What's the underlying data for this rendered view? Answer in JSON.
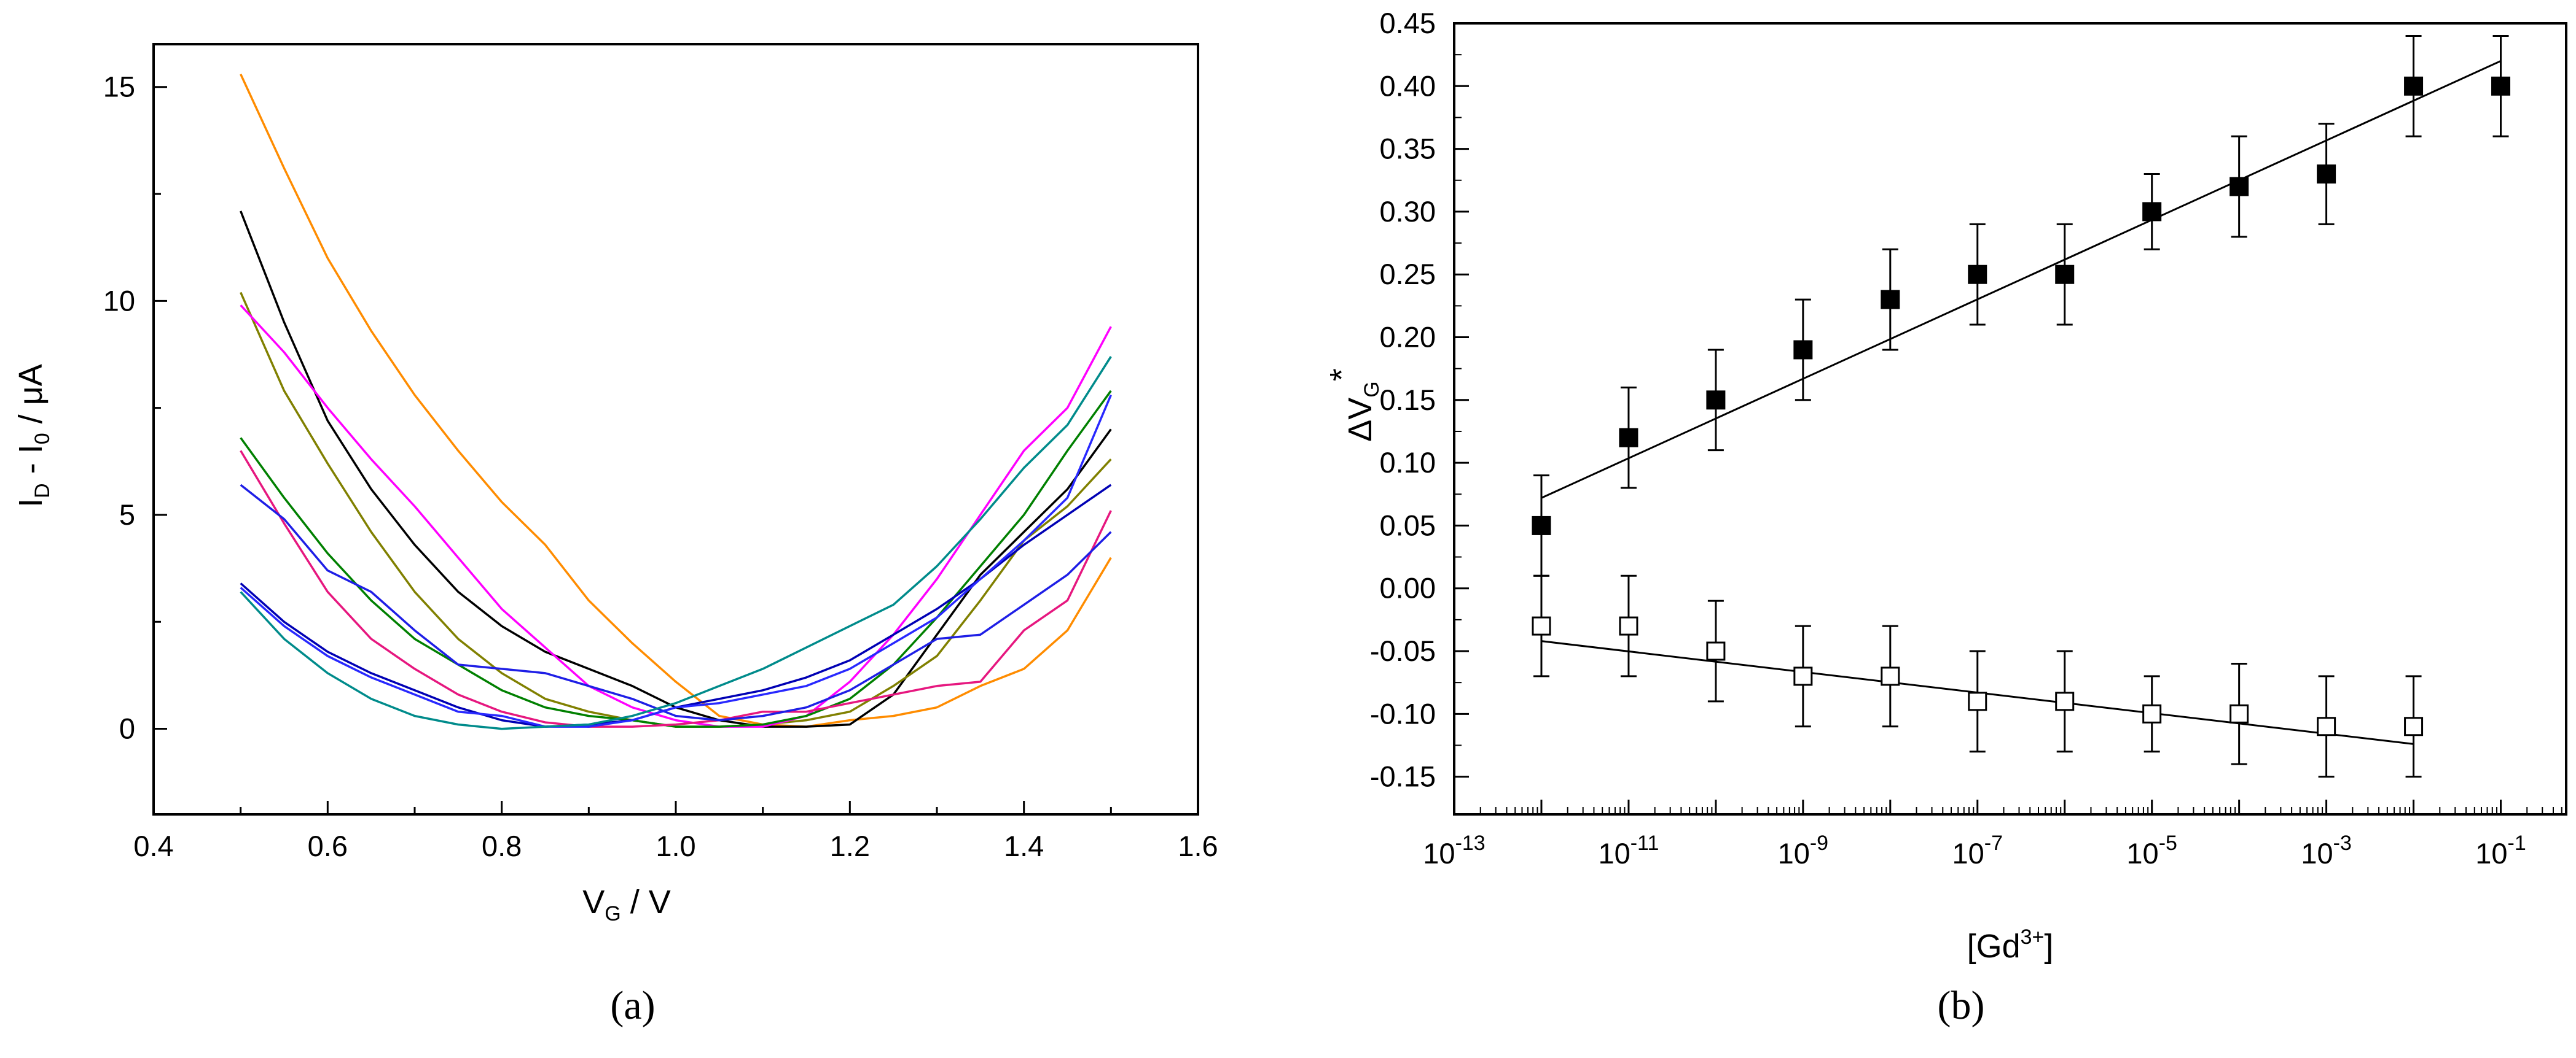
{
  "chart_data": [
    {
      "type": "line",
      "panel": "a",
      "caption": "(a)",
      "xlabel": "V",
      "xlabel_sub": "G",
      "xlabel_unit": "/ V",
      "ylabel": "I",
      "ylabel_sub1": "D",
      "ylabel_mid": "- I",
      "ylabel_sub2": "0",
      "ylabel_unit": "/ μA",
      "xlim": [
        0.4,
        1.6
      ],
      "ylim": [
        -2,
        16
      ],
      "xticks": [
        0.4,
        0.6,
        0.8,
        1.0,
        1.2,
        1.4,
        1.6
      ],
      "xtick_labels": [
        "0.4",
        "0.6",
        "0.8",
        "1.0",
        "1.2",
        "1.4",
        "1.6"
      ],
      "yticks": [
        0,
        5,
        10,
        15
      ],
      "ytick_labels": [
        "0",
        "5",
        "10",
        "15"
      ],
      "x": [
        0.5,
        0.55,
        0.6,
        0.65,
        0.7,
        0.75,
        0.8,
        0.85,
        0.9,
        0.95,
        1.0,
        1.05,
        1.1,
        1.15,
        1.2,
        1.25,
        1.3,
        1.35,
        1.4,
        1.45,
        1.5
      ],
      "series": [
        {
          "name": "orange",
          "color": "#FF8C00",
          "values": [
            15.3,
            13.1,
            11.0,
            9.3,
            7.8,
            6.5,
            5.3,
            4.3,
            3.0,
            2.0,
            1.1,
            0.3,
            0.1,
            0.05,
            0.2,
            0.3,
            0.5,
            1.0,
            1.4,
            2.3,
            4.0
          ]
        },
        {
          "name": "black",
          "color": "#000000",
          "values": [
            12.1,
            9.5,
            7.2,
            5.6,
            4.3,
            3.2,
            2.4,
            1.8,
            1.4,
            1.0,
            0.5,
            0.2,
            0.05,
            0.05,
            0.1,
            0.8,
            2.2,
            3.6,
            4.6,
            5.6,
            7.0
          ]
        },
        {
          "name": "olive",
          "color": "#808000",
          "values": [
            10.2,
            7.9,
            6.2,
            4.6,
            3.2,
            2.1,
            1.3,
            0.7,
            0.4,
            0.2,
            0.05,
            0.05,
            0.1,
            0.2,
            0.4,
            1.0,
            1.7,
            3.0,
            4.4,
            5.2,
            6.3
          ]
        },
        {
          "name": "magenta",
          "color": "#FF00FF",
          "values": [
            9.9,
            8.8,
            7.5,
            6.3,
            5.2,
            4.0,
            2.8,
            1.9,
            1.0,
            0.5,
            0.2,
            0.05,
            0.05,
            0.3,
            1.1,
            2.2,
            3.5,
            5.0,
            6.5,
            7.5,
            9.4
          ]
        },
        {
          "name": "green",
          "color": "#008000",
          "values": [
            6.8,
            5.4,
            4.1,
            3.0,
            2.1,
            1.5,
            0.9,
            0.5,
            0.3,
            0.2,
            0.05,
            0.05,
            0.1,
            0.3,
            0.7,
            1.5,
            2.6,
            3.8,
            5.0,
            6.5,
            7.9
          ]
        },
        {
          "name": "pink",
          "color": "#E6177F",
          "values": [
            6.5,
            4.8,
            3.2,
            2.1,
            1.4,
            0.8,
            0.4,
            0.15,
            0.05,
            0.05,
            0.1,
            0.2,
            0.4,
            0.4,
            0.6,
            0.8,
            1.0,
            1.1,
            2.3,
            3.0,
            5.1
          ]
        },
        {
          "name": "blue-upper",
          "color": "#1E1EE6",
          "values": [
            5.7,
            4.9,
            3.7,
            3.2,
            2.3,
            1.5,
            1.4,
            1.3,
            1.0,
            0.7,
            0.3,
            0.2,
            0.3,
            0.5,
            0.9,
            1.5,
            2.1,
            2.2,
            2.9,
            3.6,
            4.6
          ]
        },
        {
          "name": "navy",
          "color": "#0000B4",
          "values": [
            3.4,
            2.5,
            1.8,
            1.3,
            0.9,
            0.5,
            0.2,
            0.05,
            0.1,
            0.2,
            0.5,
            0.7,
            0.9,
            1.2,
            1.6,
            2.2,
            2.8,
            3.5,
            4.3,
            5.0,
            5.7
          ]
        },
        {
          "name": "blue-lower",
          "color": "#2828FF",
          "values": [
            3.3,
            2.4,
            1.7,
            1.2,
            0.8,
            0.4,
            0.3,
            0.05,
            0.05,
            0.2,
            0.5,
            0.6,
            0.8,
            1.0,
            1.4,
            2.0,
            2.6,
            3.5,
            4.4,
            5.4,
            7.8
          ]
        },
        {
          "name": "teal",
          "color": "#008B8B",
          "values": [
            3.2,
            2.1,
            1.3,
            0.7,
            0.3,
            0.1,
            0.0,
            0.05,
            0.1,
            0.3,
            0.6,
            1.0,
            1.4,
            1.9,
            2.4,
            2.9,
            3.8,
            4.9,
            6.1,
            7.1,
            8.7
          ]
        }
      ]
    },
    {
      "type": "scatter",
      "panel": "b",
      "caption": "(b)",
      "xscale": "log",
      "xlabel": "[Gd",
      "xlabel_sup": "3+",
      "xlabel_end": "]",
      "ylabel": "ΔV",
      "ylabel_sub": "G",
      "ylabel_sup": "*",
      "xlim_exp": [
        -13,
        -0.25
      ],
      "ylim": [
        -0.18,
        0.45
      ],
      "xtick_exponents": [
        -13,
        -11,
        -9,
        -7,
        -5,
        -3,
        -1
      ],
      "xtick_base": "10",
      "xtick_exp_labels": [
        "-13",
        "-11",
        "-9",
        "-7",
        "-5",
        "-3",
        "-1"
      ],
      "yticks": [
        -0.15,
        -0.1,
        -0.05,
        0.0,
        0.05,
        0.1,
        0.15,
        0.2,
        0.25,
        0.3,
        0.35,
        0.4,
        0.45
      ],
      "ytick_labels": [
        "-0.15",
        "-0.10",
        "-0.05",
        "0.00",
        "0.05",
        "0.10",
        "0.15",
        "0.20",
        "0.25",
        "0.30",
        "0.35",
        "0.40",
        "0.45"
      ],
      "series": [
        {
          "name": "filled",
          "marker": "filled-square",
          "x_exp": [
            -12,
            -11,
            -10,
            -9,
            -8,
            -7,
            -6,
            -5,
            -4,
            -3,
            -2,
            -1
          ],
          "values": [
            0.05,
            0.12,
            0.15,
            0.19,
            0.23,
            0.25,
            0.25,
            0.3,
            0.32,
            0.33,
            0.4,
            0.4
          ],
          "errors": [
            0.04,
            0.04,
            0.04,
            0.04,
            0.04,
            0.04,
            0.04,
            0.03,
            0.04,
            0.04,
            0.04,
            0.04
          ],
          "fit": {
            "x_exp": [
              -12,
              -1
            ],
            "y": [
              0.072,
              0.42
            ]
          }
        },
        {
          "name": "open",
          "marker": "open-square",
          "x_exp": [
            -12,
            -11,
            -10,
            -9,
            -8,
            -7,
            -6,
            -5,
            -4,
            -3,
            -2
          ],
          "values": [
            -0.03,
            -0.03,
            -0.05,
            -0.07,
            -0.07,
            -0.09,
            -0.09,
            -0.1,
            -0.1,
            -0.11,
            -0.11
          ],
          "errors": [
            0.04,
            0.04,
            0.04,
            0.04,
            0.04,
            0.04,
            0.04,
            0.03,
            0.04,
            0.04,
            0.04
          ],
          "fit": {
            "x_exp": [
              -12,
              -2
            ],
            "y": [
              -0.042,
              -0.124
            ]
          }
        }
      ]
    }
  ]
}
